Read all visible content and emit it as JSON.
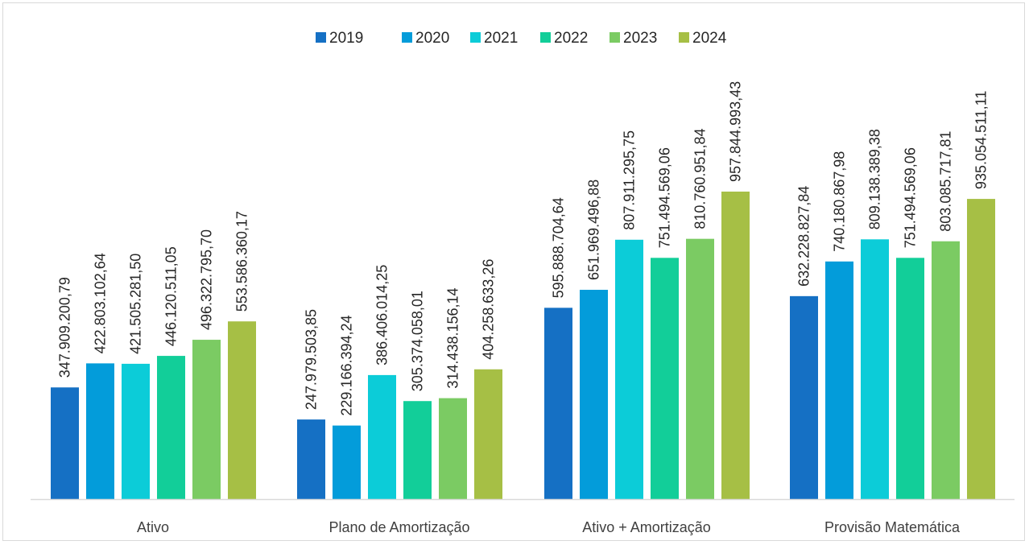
{
  "chart_data": {
    "type": "bar",
    "title": "",
    "xlabel": "",
    "ylabel": "",
    "legend_position": "top",
    "grid": false,
    "ylim": [
      0,
      1200000000
    ],
    "categories": [
      "Ativo",
      "Plano de Amortização",
      "Ativo + Amortização",
      "Provisão Matemática"
    ],
    "series": [
      {
        "name": "2019",
        "color": "#1570C4",
        "values": [
          347909200.79,
          247979503.85,
          595888704.64,
          632228827.84
        ],
        "labels": [
          "347.909.200,79",
          "247.979.503,85",
          "595.888.704,64",
          "632.228.827,84"
        ]
      },
      {
        "name": "2020",
        "color": "#039CDA",
        "values": [
          422803102.64,
          229166394.24,
          651969496.88,
          740180867.98
        ],
        "labels": [
          "422.803.102,64",
          "229.166.394,24",
          "651.969.496,88",
          "740.180.867,98"
        ]
      },
      {
        "name": "2021",
        "color": "#0CCCD8",
        "values": [
          421505281.5,
          386406014.25,
          807911295.75,
          809138389.38
        ],
        "labels": [
          "421.505.281,50",
          "386.406.014,25",
          "807.911.295,75",
          "809.138.389,38"
        ]
      },
      {
        "name": "2022",
        "color": "#12CE99",
        "values": [
          446120511.05,
          305374058.01,
          751494569.06,
          751494569.06
        ],
        "labels": [
          "446.120.511,05",
          "305.374.058,01",
          "751.494.569,06",
          "751.494.569,06"
        ]
      },
      {
        "name": "2023",
        "color": "#7BCB63",
        "values": [
          496322795.7,
          314438156.14,
          810760951.84,
          803085717.81
        ],
        "labels": [
          "496.322.795,70",
          "314.438.156,14",
          "810.760.951,84",
          "803.085.717,81"
        ]
      },
      {
        "name": "2024",
        "color": "#A6BF45",
        "values": [
          553586360.17,
          404258633.26,
          957844993.43,
          935054511.11
        ],
        "labels": [
          "553.586.360,17",
          "404.258.633,26",
          "957.844.993,43",
          "935.054.511,11"
        ]
      }
    ]
  }
}
